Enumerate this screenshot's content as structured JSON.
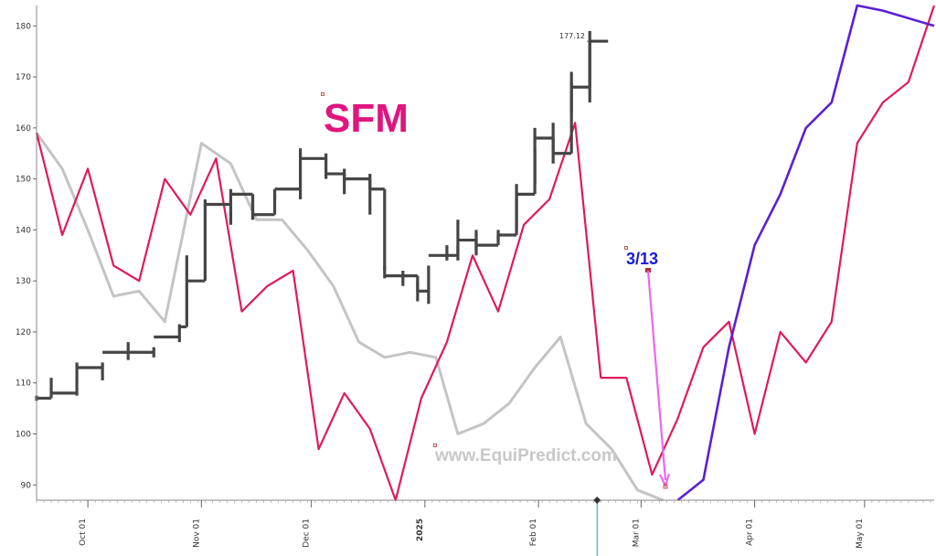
{
  "chart_data": {
    "type": "line",
    "title": "SFM",
    "watermark": "www.EquiPredict.com",
    "annotation": {
      "label": "3/13",
      "color": "#1a1ad6",
      "arrow_color": "#ee66ee"
    },
    "last_price_label": "177.12",
    "ylim": [
      87,
      184
    ],
    "yticks": [
      90,
      100,
      110,
      120,
      130,
      140,
      150,
      160,
      170,
      180
    ],
    "xlim": [
      0,
      245
    ],
    "xticks": [
      {
        "label": "Oct 01",
        "x": 14,
        "highlight": false
      },
      {
        "label": "Nov 01",
        "x": 45,
        "highlight": false
      },
      {
        "label": "Dec 01",
        "x": 75,
        "highlight": false
      },
      {
        "label": "2025",
        "x": 106,
        "highlight": true
      },
      {
        "label": "Feb 01",
        "x": 137,
        "highlight": false
      },
      {
        "label": "Mar 01",
        "x": 165,
        "highlight": false
      },
      {
        "label": "Apr 01",
        "x": 196,
        "highlight": false
      },
      {
        "label": "May 01",
        "x": 226,
        "highlight": false
      }
    ],
    "colors": {
      "price": "#454545",
      "gray_series": "#c4c4c4",
      "red_series": "#e0195e",
      "projection": "#5a1fd6",
      "title": "#e0157f"
    },
    "price_bars": [
      {
        "x": 0,
        "open": 107,
        "high": 107.5,
        "low": 106.5,
        "close": 107
      },
      {
        "x": 4,
        "open": 107,
        "high": 111,
        "low": 107,
        "close": 108
      },
      {
        "x": 11,
        "open": 108,
        "high": 114,
        "low": 107.5,
        "close": 113
      },
      {
        "x": 18,
        "open": 113,
        "high": 114,
        "low": 110.5,
        "close": 116
      },
      {
        "x": 25,
        "open": 116,
        "high": 118,
        "low": 114.5,
        "close": 116
      },
      {
        "x": 32,
        "open": 116,
        "high": 117,
        "low": 115,
        "close": 119
      },
      {
        "x": 39,
        "open": 119,
        "high": 121.5,
        "low": 118,
        "close": 121
      },
      {
        "x": 41,
        "open": 121,
        "high": 135,
        "low": 121,
        "close": 130
      },
      {
        "x": 46,
        "open": 130,
        "high": 146,
        "low": 130,
        "close": 145
      },
      {
        "x": 53,
        "open": 145,
        "high": 148,
        "low": 141,
        "close": 147
      },
      {
        "x": 59,
        "open": 142,
        "high": 147,
        "low": 142,
        "close": 143
      },
      {
        "x": 65,
        "open": 147,
        "high": 148,
        "low": 146,
        "close": 148
      },
      {
        "x": 72,
        "open": 148,
        "high": 156,
        "low": 146,
        "close": 154
      },
      {
        "x": 79,
        "open": 154,
        "high": 155,
        "low": 150,
        "close": 151
      },
      {
        "x": 84,
        "open": 150,
        "high": 152,
        "low": 147,
        "close": 150
      },
      {
        "x": 91,
        "open": 148,
        "high": 151,
        "low": 143,
        "close": 148
      },
      {
        "x": 95,
        "open": 132,
        "high": 133,
        "low": 130.5,
        "close": 131
      },
      {
        "x": 100,
        "open": 131,
        "high": 132,
        "low": 129,
        "close": 131
      },
      {
        "x": 104,
        "open": 128,
        "high": 130,
        "low": 126,
        "close": 128
      },
      {
        "x": 107,
        "open": 128,
        "high": 133,
        "low": 125.5,
        "close": 135
      },
      {
        "x": 112,
        "open": 135,
        "high": 137,
        "low": 134,
        "close": 135
      },
      {
        "x": 115,
        "open": 137,
        "high": 142,
        "low": 134,
        "close": 138
      },
      {
        "x": 120,
        "open": 136,
        "high": 140,
        "low": 135,
        "close": 137
      },
      {
        "x": 126,
        "open": 139,
        "high": 140,
        "low": 138,
        "close": 139
      },
      {
        "x": 131,
        "open": 147,
        "high": 149,
        "low": 140,
        "close": 147
      },
      {
        "x": 136,
        "open": 156,
        "high": 160,
        "low": 149,
        "close": 158
      },
      {
        "x": 141,
        "open": 155,
        "high": 161,
        "low": 153,
        "close": 155
      },
      {
        "x": 146,
        "open": 169,
        "high": 171,
        "low": 163,
        "close": 168
      },
      {
        "x": 151,
        "open": 177,
        "high": 179,
        "low": 165,
        "close": 177
      }
    ],
    "series": [
      {
        "key": "gray_series",
        "points": [
          [
            0,
            159
          ],
          [
            7,
            152
          ],
          [
            14,
            140
          ],
          [
            21,
            127
          ],
          [
            28,
            128
          ],
          [
            35,
            122
          ],
          [
            45,
            157
          ],
          [
            53,
            153
          ],
          [
            60,
            142
          ],
          [
            67,
            142
          ],
          [
            74,
            136
          ],
          [
            81,
            129
          ],
          [
            88,
            118
          ],
          [
            95,
            115
          ],
          [
            102,
            116
          ],
          [
            109,
            115
          ],
          [
            115,
            100
          ],
          [
            122,
            102
          ],
          [
            129,
            106
          ],
          [
            136,
            113
          ],
          [
            143,
            119
          ],
          [
            150,
            102
          ],
          [
            157,
            97
          ],
          [
            164,
            89
          ],
          [
            171,
            87
          ]
        ]
      },
      {
        "key": "red_series",
        "points": [
          [
            0,
            159
          ],
          [
            7,
            139
          ],
          [
            14,
            152
          ],
          [
            21,
            133
          ],
          [
            28,
            130
          ],
          [
            35,
            150
          ],
          [
            42,
            143
          ],
          [
            49,
            154
          ],
          [
            56,
            124
          ],
          [
            63,
            129
          ],
          [
            70,
            132
          ],
          [
            77,
            97
          ],
          [
            84,
            108
          ],
          [
            91,
            101
          ],
          [
            98,
            87
          ],
          [
            105,
            107
          ],
          [
            112,
            118
          ],
          [
            119,
            135
          ],
          [
            126,
            124
          ],
          [
            133,
            141
          ],
          [
            140,
            146
          ],
          [
            147,
            161
          ],
          [
            154,
            111
          ],
          [
            161,
            111
          ],
          [
            168,
            92
          ],
          [
            175,
            103
          ],
          [
            182,
            117
          ],
          [
            189,
            122
          ],
          [
            196,
            100
          ],
          [
            203,
            120
          ],
          [
            210,
            114
          ],
          [
            217,
            122
          ],
          [
            224,
            157
          ],
          [
            231,
            165
          ],
          [
            238,
            169
          ],
          [
            245,
            184
          ]
        ]
      },
      {
        "key": "projection",
        "points": [
          [
            175,
            87
          ],
          [
            182,
            91
          ],
          [
            189,
            117
          ],
          [
            196,
            137
          ],
          [
            203,
            147
          ],
          [
            210,
            160
          ],
          [
            217,
            165
          ],
          [
            224,
            184
          ],
          [
            231,
            183
          ],
          [
            245,
            180
          ]
        ]
      }
    ]
  }
}
